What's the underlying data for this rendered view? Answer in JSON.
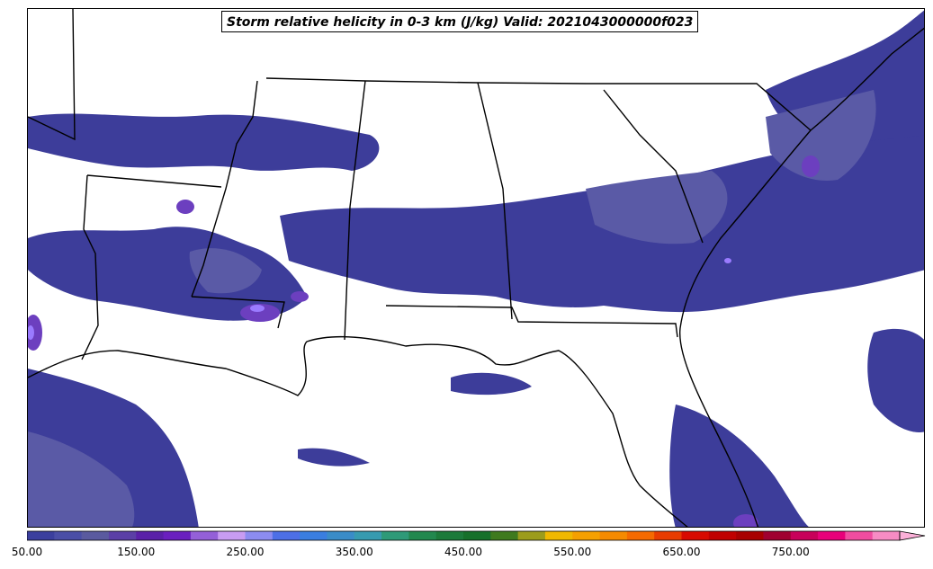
{
  "map": {
    "title": "Storm relative helicity in 0-3 km (J/kg) Valid: 2021043000000f023",
    "colors": {
      "shade_low": "#3d3d9a",
      "shade_mid": "#5a5aa6",
      "shade_high": "#6c3fbf",
      "shade_peak": "#9a7bff",
      "outline": "#000000"
    }
  },
  "colorbar": {
    "tick_labels": [
      "50.00",
      "150.00",
      "250.00",
      "350.00",
      "450.00",
      "550.00",
      "650.00",
      "750.00"
    ],
    "colors": [
      "#3b3f9e",
      "#4a4ea6",
      "#5a5a9f",
      "#5b3fa6",
      "#5a20a8",
      "#6a1fbf",
      "#9460d8",
      "#c89cf2",
      "#8c8cf0",
      "#4d6fe6",
      "#3a7ee0",
      "#3a8cc8",
      "#379bb0",
      "#2e9a78",
      "#22884e",
      "#1c7a3a",
      "#16702a",
      "#3f7a1e",
      "#9c9c1c",
      "#f0b800",
      "#f5a000",
      "#f58a00",
      "#f56a00",
      "#e83c00",
      "#d80a00",
      "#c00000",
      "#a80000",
      "#a00030",
      "#c8005a",
      "#e8007a",
      "#f04ca0",
      "#f78cc4"
    ],
    "extend_color": "#fbb0d8"
  }
}
